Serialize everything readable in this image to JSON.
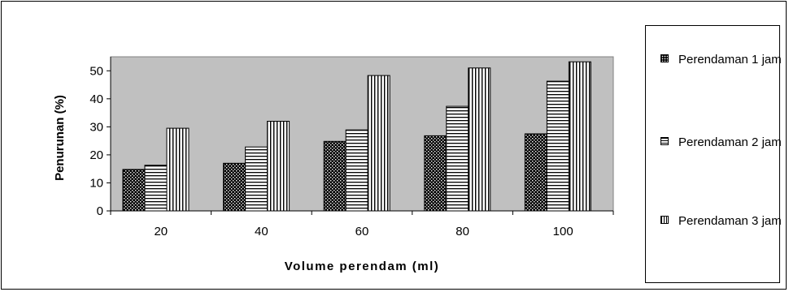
{
  "chart_data": {
    "type": "bar",
    "categories": [
      "20",
      "40",
      "60",
      "80",
      "100"
    ],
    "series": [
      {
        "name": "Perendaman 1 jam",
        "values": [
          14.8,
          17.0,
          24.8,
          26.8,
          27.5
        ]
      },
      {
        "name": "Perendaman 2 jam",
        "values": [
          16.3,
          22.8,
          28.9,
          37.3,
          46.3
        ]
      },
      {
        "name": "Perendaman 3 jam",
        "values": [
          29.5,
          32.0,
          48.3,
          51.0,
          53.2
        ]
      }
    ],
    "title": "",
    "xlabel": "Volume perendam (ml)",
    "ylabel": "Penurunan (%)",
    "ylim": [
      0,
      55
    ],
    "yticks": [
      "0",
      "10",
      "20",
      "30",
      "40",
      "50"
    ],
    "grid": false,
    "legend_position": "right",
    "colors": {
      "plot_background": "#c0c0c0",
      "bar_fill": "#ffffff",
      "pattern": "#000000"
    }
  },
  "legend": {
    "items": [
      {
        "label": "Perendaman 1 jam",
        "pattern": "dots"
      },
      {
        "label": "Perendaman 2 jam",
        "pattern": "horizontal-stripes"
      },
      {
        "label": "Perendaman 3 jam",
        "pattern": "vertical-stripes"
      }
    ]
  }
}
